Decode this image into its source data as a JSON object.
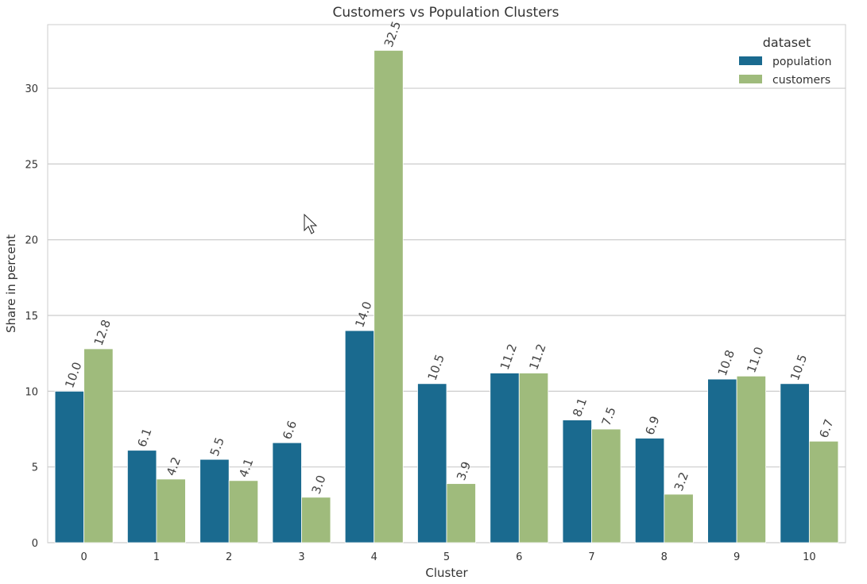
{
  "chart_data": {
    "type": "bar",
    "title": "Customers vs Population Clusters",
    "xlabel": "Cluster",
    "ylabel": "Share in percent",
    "categories": [
      "0",
      "1",
      "2",
      "3",
      "4",
      "5",
      "6",
      "7",
      "8",
      "9",
      "10"
    ],
    "series": [
      {
        "name": "population",
        "color": "#1a6a8f",
        "values": [
          10.0,
          6.1,
          5.5,
          6.6,
          14.0,
          10.5,
          11.2,
          8.1,
          6.9,
          10.8,
          10.5
        ]
      },
      {
        "name": "customers",
        "color": "#9fbb7c",
        "values": [
          12.8,
          4.2,
          4.1,
          3.0,
          32.5,
          3.9,
          11.2,
          7.5,
          3.2,
          11.0,
          6.7
        ]
      }
    ],
    "ylim": [
      0,
      34.2
    ],
    "yticks": [
      0,
      5,
      10,
      15,
      20,
      25,
      30
    ],
    "grid": true,
    "legend": {
      "title": "dataset",
      "position": "top-right"
    }
  }
}
